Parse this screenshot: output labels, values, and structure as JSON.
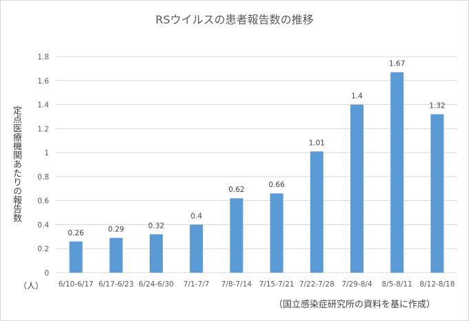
{
  "chart_data": {
    "type": "bar",
    "title": "RSウイルスの患者報告数の推移",
    "ylabel": "定点医療機関あたりの報告数",
    "yunit": "（人）",
    "source": "（国立感染症研究所の資料を基に作成）",
    "categories": [
      "6/10-6/17",
      "6/17-6/23",
      "6/24-6/30",
      "7/1-7/7",
      "7/8-7/14",
      "7/15-7/21",
      "7/22-7/28",
      "7/29-8/4",
      "8/5-8/11",
      "8/12-8/18"
    ],
    "values": [
      0.26,
      0.29,
      0.32,
      0.4,
      0.62,
      0.66,
      1.01,
      1.4,
      1.67,
      1.32
    ],
    "data_labels": [
      "0.26",
      "0.29",
      "0.32",
      "0.4",
      "0.62",
      "0.66",
      "1.01",
      "1.4",
      "1.67",
      "1.32"
    ],
    "yticks": [
      "0",
      "0.2",
      "0.4",
      "0.6",
      "0.8",
      "1",
      "1.2",
      "1.4",
      "1.6",
      "1.8"
    ],
    "ylim": [
      0,
      1.8
    ],
    "grid": true,
    "bar_color": "#5b9bd5",
    "grid_color": "#d9d9d9"
  }
}
